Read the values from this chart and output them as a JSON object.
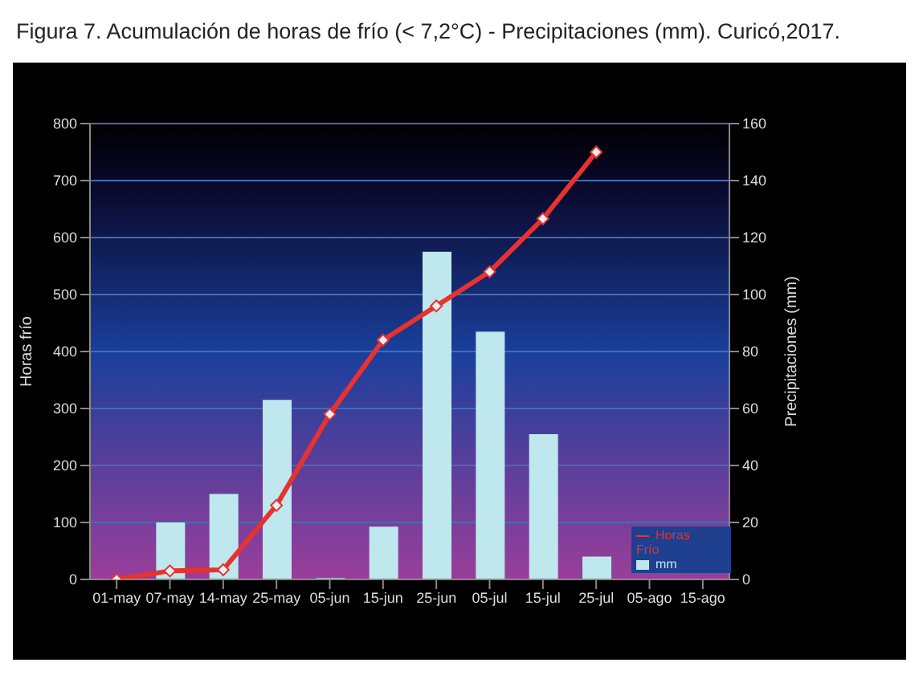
{
  "chart_data": {
    "type": "bar",
    "title": "Figura 7. Acumulación de horas de frío (< 7,2°C) - Precipitaciones (mm). Curicó,2017.",
    "categories": [
      "01-may",
      "07-may",
      "14-may",
      "25-may",
      "05-jun",
      "15-jun",
      "25-jun",
      "05-jul",
      "15-jul",
      "25-jul",
      "05-ago",
      "15-ago"
    ],
    "series": [
      {
        "name": "mm",
        "axis": "y2",
        "color": "#bfe8ee",
        "values": [
          0,
          20,
          30,
          63,
          0.5,
          18.5,
          115,
          87,
          51,
          8,
          null,
          null
        ]
      },
      {
        "name": "Horas Frío",
        "type": "line",
        "color": "#e8322e",
        "values": [
          0,
          15,
          17,
          130,
          290,
          420,
          480,
          540,
          633,
          750,
          null,
          null
        ]
      }
    ],
    "ylabel": "Horas frío",
    "y2label": "Precipitaciones (mm)",
    "ylim": [
      0,
      800
    ],
    "yticks": [
      0,
      100,
      200,
      300,
      400,
      500,
      600,
      700,
      800
    ],
    "y2lim": [
      0,
      160
    ],
    "y2ticks": [
      0,
      20,
      40,
      60,
      80,
      100,
      120,
      140,
      160
    ],
    "grid": "y",
    "legend": "bottom right",
    "marker": "diamond",
    "line_style": "solid"
  }
}
